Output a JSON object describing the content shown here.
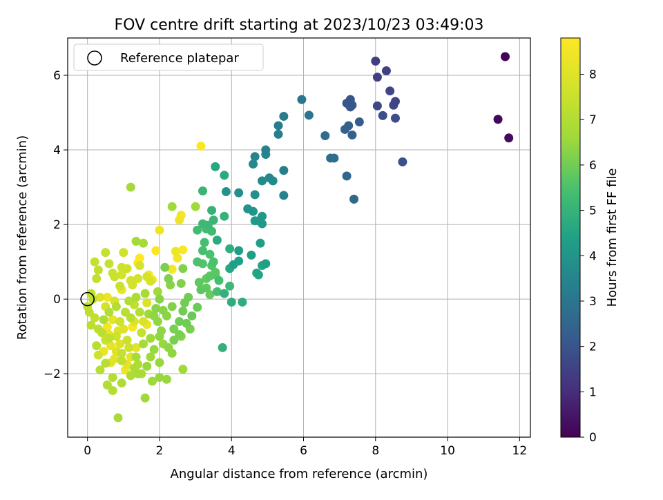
{
  "chart_data": {
    "type": "scatter",
    "title": "FOV centre drift starting at 2023/10/23 03:49:03",
    "xlabel": "Angular distance from reference (arcmin)",
    "ylabel": "Rotation from reference (arcmin)",
    "xlim": [
      -0.55,
      12.3
    ],
    "ylim": [
      -3.7,
      7.0
    ],
    "xticks": [
      0,
      2,
      4,
      6,
      8,
      10,
      12
    ],
    "xtick_labels": [
      "0",
      "2",
      "4",
      "6",
      "8",
      "10",
      "12"
    ],
    "yticks": [
      -2,
      0,
      2,
      4,
      6
    ],
    "ytick_labels": [
      "−2",
      "0",
      "2",
      "4",
      "6"
    ],
    "grid": true,
    "legend": {
      "placement": "top-left",
      "entries": [
        "Reference platepar"
      ]
    },
    "colorbar": {
      "label": "Hours from first FF file",
      "colormap": "viridis",
      "range": [
        0,
        8.8
      ],
      "ticks": [
        0,
        1,
        2,
        3,
        4,
        5,
        6,
        7,
        8
      ],
      "tick_labels": [
        "0",
        "1",
        "2",
        "3",
        "4",
        "5",
        "6",
        "7",
        "8"
      ]
    },
    "reference_point": {
      "x": 0,
      "y": 0,
      "label": "Reference platepar"
    },
    "series": [
      {
        "points": [
          [
            11.6,
            6.5,
            0.1
          ],
          [
            11.4,
            4.82,
            0.15
          ],
          [
            11.7,
            4.32,
            0.2
          ],
          [
            8.0,
            6.38,
            1.4
          ],
          [
            8.3,
            6.12,
            1.5
          ],
          [
            8.05,
            5.95,
            1.5
          ],
          [
            8.4,
            5.58,
            1.6
          ],
          [
            8.55,
            5.3,
            1.6
          ],
          [
            8.5,
            5.2,
            1.7
          ],
          [
            8.05,
            5.18,
            1.7
          ],
          [
            8.2,
            4.92,
            1.8
          ],
          [
            8.55,
            4.85,
            1.8
          ],
          [
            8.75,
            3.68,
            1.9
          ],
          [
            7.3,
            5.35,
            2.0
          ],
          [
            7.2,
            5.25,
            2.1
          ],
          [
            7.3,
            5.15,
            2.1
          ],
          [
            7.35,
            5.2,
            2.2
          ],
          [
            7.55,
            4.75,
            2.2
          ],
          [
            7.25,
            4.65,
            2.3
          ],
          [
            7.15,
            4.55,
            2.3
          ],
          [
            7.35,
            4.4,
            2.4
          ],
          [
            7.2,
            3.3,
            2.5
          ],
          [
            7.4,
            2.68,
            2.6
          ],
          [
            6.6,
            4.38,
            2.7
          ],
          [
            6.75,
            3.78,
            2.8
          ],
          [
            6.85,
            3.78,
            2.8
          ],
          [
            6.15,
            4.93,
            3.0
          ],
          [
            5.95,
            5.35,
            3.0
          ],
          [
            5.45,
            4.9,
            3.2
          ],
          [
            5.3,
            4.65,
            3.2
          ],
          [
            5.3,
            4.42,
            3.3
          ],
          [
            5.45,
            3.45,
            3.3
          ],
          [
            5.45,
            2.78,
            3.4
          ],
          [
            4.95,
            4.0,
            3.4
          ],
          [
            4.95,
            3.88,
            3.5
          ],
          [
            4.65,
            3.82,
            3.5
          ],
          [
            4.6,
            3.62,
            3.6
          ],
          [
            5.05,
            3.25,
            3.6
          ],
          [
            5.15,
            3.17,
            3.7
          ],
          [
            4.85,
            3.17,
            3.7
          ],
          [
            4.65,
            2.8,
            3.8
          ],
          [
            4.2,
            2.85,
            3.8
          ],
          [
            3.85,
            2.88,
            3.9
          ],
          [
            4.45,
            2.42,
            4.0
          ],
          [
            4.6,
            2.35,
            4.0
          ],
          [
            4.85,
            2.22,
            4.1
          ],
          [
            4.75,
            2.1,
            4.1
          ],
          [
            4.65,
            2.1,
            4.2
          ],
          [
            4.85,
            2.02,
            4.2
          ],
          [
            4.8,
            1.5,
            4.3
          ],
          [
            4.55,
            1.18,
            4.3
          ],
          [
            4.2,
            1.3,
            4.3
          ],
          [
            4.2,
            1.02,
            4.4
          ],
          [
            4.05,
            0.92,
            4.4
          ],
          [
            4.95,
            0.95,
            4.4
          ],
          [
            4.85,
            0.9,
            4.5
          ],
          [
            4.7,
            0.7,
            4.5
          ],
          [
            4.75,
            0.65,
            4.5
          ],
          [
            3.95,
            0.82,
            4.6
          ],
          [
            3.55,
            3.55,
            4.6
          ],
          [
            3.8,
            3.32,
            4.7
          ],
          [
            3.6,
            1.58,
            4.7
          ],
          [
            3.95,
            1.35,
            4.8
          ],
          [
            4.0,
            -0.08,
            4.8
          ],
          [
            4.3,
            -0.08,
            4.8
          ],
          [
            3.75,
            -1.3,
            4.9
          ],
          [
            3.8,
            0.15,
            4.9
          ],
          [
            3.45,
            2.38,
            5.0
          ],
          [
            3.8,
            2.22,
            5.0
          ],
          [
            3.5,
            2.12,
            5.1
          ],
          [
            3.2,
            2.9,
            5.1
          ],
          [
            3.2,
            2.02,
            5.2
          ],
          [
            3.35,
            1.98,
            5.2
          ],
          [
            3.3,
            1.88,
            5.3
          ],
          [
            3.05,
            1.85,
            5.3
          ],
          [
            3.45,
            1.82,
            5.3
          ],
          [
            3.25,
            1.52,
            5.4
          ],
          [
            3.2,
            1.3,
            5.4
          ],
          [
            3.4,
            1.2,
            5.5
          ],
          [
            3.5,
            1.0,
            5.5
          ],
          [
            3.05,
            1.0,
            5.5
          ],
          [
            3.2,
            0.95,
            5.6
          ],
          [
            3.45,
            0.9,
            5.6
          ],
          [
            3.4,
            0.62,
            5.7
          ],
          [
            3.55,
            0.72,
            5.7
          ],
          [
            3.55,
            0.65,
            5.7
          ],
          [
            3.3,
            0.55,
            5.8
          ],
          [
            3.3,
            0.3,
            5.8
          ],
          [
            3.4,
            0.12,
            5.9
          ],
          [
            3.05,
            -0.22,
            5.9
          ],
          [
            2.65,
            -0.32,
            6.0
          ],
          [
            2.75,
            -0.65,
            6.0
          ],
          [
            2.55,
            -0.6,
            6.0
          ],
          [
            2.4,
            -0.8,
            6.1
          ],
          [
            2.55,
            -0.95,
            6.1
          ],
          [
            2.15,
            0.85,
            6.1
          ],
          [
            2.65,
            0.82,
            6.2
          ],
          [
            2.6,
            0.42,
            6.2
          ],
          [
            2.25,
            0.55,
            6.2
          ],
          [
            2.3,
            0.38,
            6.3
          ],
          [
            2.0,
            0.0,
            6.3
          ],
          [
            2.1,
            -0.3,
            6.3
          ],
          [
            1.85,
            -0.45,
            6.4
          ],
          [
            2.0,
            -1.0,
            6.4
          ],
          [
            2.35,
            -1.45,
            6.4
          ],
          [
            1.65,
            -1.8,
            6.5
          ],
          [
            2.0,
            -1.7,
            6.5
          ],
          [
            2.0,
            -2.1,
            6.5
          ],
          [
            2.2,
            -2.15,
            6.5
          ],
          [
            1.8,
            -2.2,
            6.6
          ],
          [
            1.6,
            -2.65,
            6.6
          ],
          [
            2.65,
            -1.88,
            6.6
          ],
          [
            2.35,
            2.48,
            6.6
          ],
          [
            3.0,
            2.48,
            6.6
          ],
          [
            1.55,
            1.5,
            6.7
          ],
          [
            1.35,
            1.55,
            6.7
          ],
          [
            1.2,
            3.0,
            6.7
          ],
          [
            0.85,
            -3.18,
            6.8
          ],
          [
            1.5,
            -2.0,
            6.8
          ],
          [
            1.4,
            -2.0,
            6.8
          ],
          [
            1.2,
            -2.05,
            6.9
          ],
          [
            1.3,
            -1.85,
            6.9
          ],
          [
            0.95,
            -2.25,
            6.9
          ],
          [
            0.7,
            -2.1,
            7.0
          ],
          [
            0.55,
            -2.3,
            7.0
          ],
          [
            0.7,
            -2.45,
            7.0
          ],
          [
            0.35,
            -1.9,
            7.1
          ],
          [
            0.5,
            -1.72,
            7.1
          ],
          [
            0.25,
            -1.25,
            7.1
          ],
          [
            0.3,
            -0.8,
            7.2
          ],
          [
            0.1,
            -0.7,
            7.2
          ],
          [
            0.05,
            -0.35,
            7.2
          ],
          [
            0.0,
            -0.2,
            7.3
          ],
          [
            0.1,
            0.15,
            7.3
          ],
          [
            0.25,
            0.55,
            7.3
          ],
          [
            0.3,
            0.78,
            7.3
          ],
          [
            0.2,
            1.0,
            7.4
          ],
          [
            0.5,
            1.25,
            7.4
          ],
          [
            0.6,
            0.95,
            7.4
          ],
          [
            0.7,
            0.7,
            7.5
          ],
          [
            0.75,
            0.6,
            7.5
          ],
          [
            0.9,
            0.35,
            7.5
          ],
          [
            0.95,
            0.85,
            7.6
          ],
          [
            1.1,
            0.82,
            7.6
          ],
          [
            1.0,
            1.25,
            7.6
          ],
          [
            1.2,
            0.5,
            7.7
          ],
          [
            1.4,
            0.55,
            7.7
          ],
          [
            1.25,
            0.38,
            7.7
          ],
          [
            1.45,
            0.9,
            7.8
          ],
          [
            1.65,
            0.6,
            7.8
          ],
          [
            1.75,
            0.48,
            7.8
          ],
          [
            1.65,
            -0.1,
            7.9
          ],
          [
            1.55,
            -0.6,
            7.9
          ],
          [
            1.3,
            -0.6,
            7.9
          ],
          [
            1.0,
            -0.8,
            8.0
          ],
          [
            0.9,
            -1.2,
            8.0
          ],
          [
            0.8,
            -1.4,
            8.0
          ],
          [
            0.75,
            -1.6,
            8.1
          ],
          [
            0.65,
            -1.7,
            8.1
          ],
          [
            1.1,
            -1.75,
            8.1
          ],
          [
            1.2,
            -1.55,
            8.2
          ],
          [
            0.6,
            -0.95,
            8.2
          ],
          [
            0.7,
            -0.55,
            8.2
          ],
          [
            0.55,
            0.05,
            8.3
          ],
          [
            0.95,
            0.25,
            8.3
          ],
          [
            1.65,
            -0.68,
            8.3
          ],
          [
            2.45,
            1.28,
            8.4
          ],
          [
            2.0,
            1.85,
            8.4
          ],
          [
            2.55,
            2.12,
            8.4
          ],
          [
            2.6,
            2.25,
            8.5
          ],
          [
            2.35,
            0.8,
            8.5
          ],
          [
            2.5,
            1.1,
            8.5
          ],
          [
            1.8,
            0.52,
            8.6
          ],
          [
            1.7,
            0.65,
            8.6
          ],
          [
            3.15,
            4.1,
            8.7
          ],
          [
            2.65,
            1.32,
            8.7
          ],
          [
            1.9,
            1.3,
            8.7
          ],
          [
            1.45,
            1.1,
            8.8
          ],
          [
            1.4,
            0.97,
            8.8
          ],
          [
            0.45,
            -0.55,
            6.9
          ],
          [
            0.6,
            -0.35,
            7.0
          ],
          [
            0.8,
            -0.2,
            7.0
          ],
          [
            1.05,
            -0.35,
            7.1
          ],
          [
            1.2,
            -0.5,
            7.1
          ],
          [
            0.4,
            -0.9,
            7.2
          ],
          [
            0.6,
            -1.05,
            7.3
          ],
          [
            0.95,
            -1.45,
            7.4
          ],
          [
            1.1,
            -1.1,
            7.5
          ],
          [
            0.3,
            -1.5,
            7.6
          ],
          [
            0.5,
            -0.2,
            7.7
          ],
          [
            0.75,
            -0.05,
            7.8
          ],
          [
            0.35,
            0.05,
            7.9
          ],
          [
            0.85,
            -0.85,
            8.0
          ],
          [
            1.35,
            -1.3,
            8.1
          ],
          [
            0.65,
            -1.25,
            8.2
          ],
          [
            0.45,
            -1.4,
            8.3
          ],
          [
            1.05,
            -1.9,
            8.4
          ],
          [
            0.55,
            -0.75,
            8.5
          ],
          [
            1.25,
            -0.75,
            8.6
          ],
          [
            1.95,
            -0.6,
            6.4
          ],
          [
            2.2,
            -0.45,
            6.3
          ],
          [
            1.85,
            -1.35,
            6.5
          ],
          [
            1.75,
            -1.05,
            6.6
          ],
          [
            2.1,
            -1.2,
            6.5
          ],
          [
            1.55,
            -1.2,
            6.7
          ],
          [
            1.35,
            -1.55,
            6.8
          ],
          [
            1.9,
            -0.25,
            6.3
          ],
          [
            2.35,
            -0.2,
            6.2
          ],
          [
            2.7,
            -0.1,
            6.0
          ],
          [
            2.9,
            -0.45,
            5.9
          ],
          [
            3.1,
            0.45,
            5.8
          ],
          [
            2.8,
            0.05,
            6.0
          ],
          [
            1.35,
            0.05,
            6.9
          ],
          [
            1.15,
            -0.05,
            7.0
          ],
          [
            1.6,
            0.15,
            6.8
          ],
          [
            1.95,
            0.2,
            6.6
          ],
          [
            1.45,
            -0.35,
            7.0
          ],
          [
            0.2,
            -0.5,
            7.3
          ],
          [
            0.15,
            0.0,
            7.2
          ],
          [
            0.9,
            -0.6,
            7.6
          ],
          [
            1.5,
            -0.9,
            7.4
          ],
          [
            2.05,
            -0.85,
            6.4
          ],
          [
            1.7,
            -0.4,
            6.6
          ],
          [
            0.8,
            -1.0,
            7.6
          ],
          [
            1.15,
            -1.3,
            7.6
          ],
          [
            0.5,
            -1.1,
            7.5
          ],
          [
            0.95,
            0.65,
            7.7
          ],
          [
            1.3,
            -0.15,
            7.3
          ],
          [
            2.4,
            -1.1,
            6.1
          ],
          [
            3.15,
            0.25,
            5.7
          ],
          [
            3.65,
            0.5,
            5.4
          ],
          [
            3.95,
            0.35,
            5.2
          ],
          [
            3.6,
            0.2,
            5.4
          ],
          [
            2.85,
            -0.8,
            6.1
          ],
          [
            2.6,
            -1.0,
            6.3
          ],
          [
            1.75,
            -1.55,
            6.6
          ],
          [
            2.25,
            -1.3,
            6.4
          ],
          [
            1.4,
            -1.75,
            6.9
          ],
          [
            0.95,
            -1.65,
            7.3
          ]
        ]
      }
    ]
  }
}
